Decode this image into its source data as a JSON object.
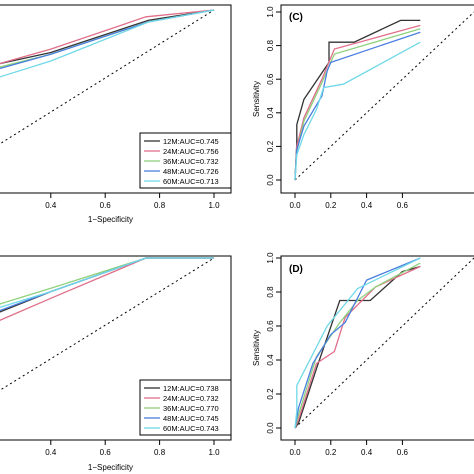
{
  "chart_data": [
    {
      "type": "line",
      "panel_label": "",
      "xlabel": "1−Specificity",
      "ylabel": "",
      "xlim": [
        0,
        1
      ],
      "ylim": [
        0,
        1
      ],
      "xticks": [
        "0.4",
        "0.6",
        "0.8",
        "1.0"
      ],
      "yticks": [],
      "reference_line": "diagonal",
      "legend_position": "bottom-right",
      "series": [
        {
          "name": "12M:AUC=0.745",
          "color": "#333333",
          "x": [
            0,
            0.2,
            0.4,
            0.76,
            1.0
          ],
          "y": [
            0.55,
            0.68,
            0.75,
            0.94,
            1.0
          ]
        },
        {
          "name": "24M:AUC=0.756",
          "color": "#e0708a",
          "x": [
            0,
            0.2,
            0.4,
            0.75,
            1.0
          ],
          "y": [
            0.57,
            0.68,
            0.77,
            0.96,
            1.0
          ]
        },
        {
          "name": "36M:AUC=0.732",
          "color": "#8fd17d",
          "x": [
            0,
            0.2,
            0.4,
            0.76,
            1.0
          ],
          "y": [
            0.54,
            0.66,
            0.74,
            0.93,
            1.0
          ]
        },
        {
          "name": "48M:AUC=0.726",
          "color": "#4a7fe0",
          "x": [
            0,
            0.2,
            0.4,
            0.76,
            1.0
          ],
          "y": [
            0.52,
            0.65,
            0.74,
            0.93,
            1.0
          ]
        },
        {
          "name": "60M:AUC=0.713",
          "color": "#6fd8e8",
          "x": [
            0,
            0.2,
            0.4,
            0.76,
            1.0
          ],
          "y": [
            0.48,
            0.6,
            0.7,
            0.93,
            1.0
          ]
        }
      ]
    },
    {
      "type": "line",
      "panel_label": "(C)",
      "xlabel": "",
      "ylabel": "Sensitivity",
      "xlim": [
        0,
        1
      ],
      "ylim": [
        0,
        1
      ],
      "xticks": [
        "0.0",
        "0.2",
        "0.4",
        "0.6"
      ],
      "yticks": [
        "0.0",
        "0.2",
        "0.4",
        "0.6",
        "0.8",
        "1.0"
      ],
      "reference_line": "diagonal",
      "legend_position": "",
      "series": [
        {
          "name": "",
          "color": "#333333",
          "x": [
            0,
            0.01,
            0.01,
            0.05,
            0.19,
            0.19,
            0.33,
            0.59,
            0.7
          ],
          "y": [
            0,
            0.22,
            0.33,
            0.48,
            0.7,
            0.82,
            0.82,
            0.95,
            0.95
          ]
        },
        {
          "name": "",
          "color": "#e0708a",
          "x": [
            0,
            0.01,
            0.05,
            0.15,
            0.22,
            0.7
          ],
          "y": [
            0,
            0.2,
            0.37,
            0.6,
            0.78,
            0.92
          ]
        },
        {
          "name": "",
          "color": "#8fd17d",
          "x": [
            0,
            0.01,
            0.05,
            0.15,
            0.22,
            0.7
          ],
          "y": [
            0,
            0.17,
            0.35,
            0.58,
            0.75,
            0.9
          ]
        },
        {
          "name": "",
          "color": "#4a7fe0",
          "x": [
            0,
            0.01,
            0.05,
            0.15,
            0.18,
            0.2,
            0.7
          ],
          "y": [
            0,
            0.18,
            0.32,
            0.5,
            0.65,
            0.7,
            0.88
          ]
        },
        {
          "name": "",
          "color": "#6fd8e8",
          "x": [
            0,
            0.01,
            0.05,
            0.12,
            0.16,
            0.27,
            0.7
          ],
          "y": [
            0,
            0.15,
            0.27,
            0.42,
            0.55,
            0.57,
            0.82
          ]
        }
      ]
    },
    {
      "type": "line",
      "panel_label": "",
      "xlabel": "1−Specificity",
      "ylabel": "",
      "xlim": [
        0,
        1
      ],
      "ylim": [
        0,
        1
      ],
      "xticks": [
        "0.4",
        "0.6",
        "0.8",
        "1.0"
      ],
      "yticks": [],
      "reference_line": "diagonal",
      "legend_position": "bottom-right",
      "series": [
        {
          "name": "12M:AUC=0.738",
          "color": "#333333",
          "x": [
            0,
            0.2,
            0.4,
            0.75,
            1.0
          ],
          "y": [
            0.55,
            0.67,
            0.8,
            1.0,
            1.0
          ]
        },
        {
          "name": "24M:AUC=0.732",
          "color": "#e0708a",
          "x": [
            0,
            0.2,
            0.4,
            0.75,
            1.0
          ],
          "y": [
            0.53,
            0.62,
            0.76,
            1.0,
            1.0
          ]
        },
        {
          "name": "36M:AUC=0.770",
          "color": "#8fd17d",
          "x": [
            0,
            0.2,
            0.4,
            0.75,
            1.0
          ],
          "y": [
            0.58,
            0.72,
            0.82,
            1.0,
            1.0
          ]
        },
        {
          "name": "48M:AUC=0.745",
          "color": "#4a7fe0",
          "x": [
            0,
            0.2,
            0.4,
            0.75,
            1.0
          ],
          "y": [
            0.55,
            0.68,
            0.8,
            1.0,
            1.0
          ]
        },
        {
          "name": "60M:AUC=0.743",
          "color": "#6fd8e8",
          "x": [
            0,
            0.2,
            0.4,
            0.75,
            1.0
          ],
          "y": [
            0.6,
            0.7,
            0.8,
            1.0,
            1.0
          ]
        }
      ]
    },
    {
      "type": "line",
      "panel_label": "(D)",
      "xlabel": "",
      "ylabel": "Sensitivity",
      "xlim": [
        0,
        1
      ],
      "ylim": [
        0,
        1
      ],
      "xticks": [
        "0.0",
        "0.2",
        "0.4",
        "0.6"
      ],
      "yticks": [
        "0.0",
        "0.2",
        "0.4",
        "0.6",
        "0.8",
        "1.0"
      ],
      "reference_line": "diagonal",
      "legend_position": "",
      "series": [
        {
          "name": "",
          "color": "#333333",
          "x": [
            0,
            0.02,
            0.12,
            0.25,
            0.42,
            0.6,
            0.7
          ],
          "y": [
            0,
            0.03,
            0.35,
            0.75,
            0.75,
            0.92,
            0.95
          ]
        },
        {
          "name": "",
          "color": "#e0708a",
          "x": [
            0,
            0.02,
            0.12,
            0.22,
            0.28,
            0.45,
            0.7
          ],
          "y": [
            0,
            0.05,
            0.38,
            0.45,
            0.65,
            0.83,
            0.95
          ]
        },
        {
          "name": "",
          "color": "#8fd17d",
          "x": [
            0,
            0.02,
            0.12,
            0.25,
            0.35,
            0.45,
            0.7
          ],
          "y": [
            0,
            0.08,
            0.42,
            0.62,
            0.75,
            0.83,
            0.97
          ]
        },
        {
          "name": "",
          "color": "#4a7fe0",
          "x": [
            0,
            0.02,
            0.1,
            0.2,
            0.28,
            0.4,
            0.7
          ],
          "y": [
            0,
            0.12,
            0.38,
            0.55,
            0.62,
            0.87,
            1.0
          ]
        },
        {
          "name": "",
          "color": "#6fd8e8",
          "x": [
            0,
            0.01,
            0.01,
            0.18,
            0.35,
            0.7
          ],
          "y": [
            0,
            0.1,
            0.25,
            0.6,
            0.82,
            1.0
          ]
        }
      ]
    }
  ]
}
